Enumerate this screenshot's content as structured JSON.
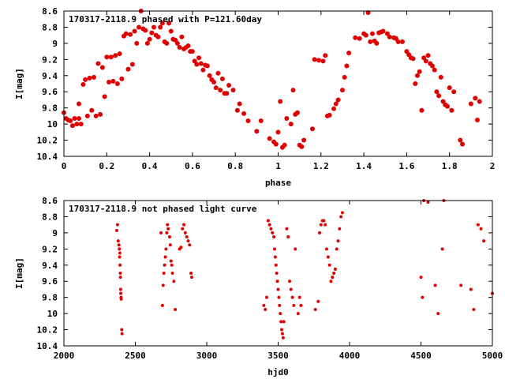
{
  "colors": {
    "points": "#e00000",
    "axes": "#000000",
    "background": "#ffffff"
  },
  "chart_data": [
    {
      "type": "scatter",
      "title": "170317-2118.9 phased with P=121.60day",
      "xlabel": "phase",
      "ylabel": "I[mag]",
      "xlim": [
        0,
        2
      ],
      "ylim": [
        8.6,
        10.4
      ],
      "y_inverted": true,
      "marker": "filled-circle-large",
      "grid": false,
      "xticks": [
        "0",
        "0.2",
        "0.4",
        "0.6",
        "0.8",
        "1",
        "1.2",
        "1.4",
        "1.6",
        "1.8",
        "2"
      ],
      "yticks": [
        "8.6",
        "8.8",
        "9",
        "9.2",
        "9.4",
        "9.6",
        "9.8",
        "10",
        "10.2",
        "10.4"
      ],
      "points": [
        [
          0.0,
          9.86
        ],
        [
          0.01,
          9.93
        ],
        [
          0.02,
          9.95
        ],
        [
          0.03,
          9.96
        ],
        [
          0.04,
          10.02
        ],
        [
          0.05,
          9.93
        ],
        [
          0.06,
          10.0
        ],
        [
          0.07,
          9.75
        ],
        [
          0.07,
          9.93
        ],
        [
          0.08,
          10.0
        ],
        [
          0.09,
          9.51
        ],
        [
          0.1,
          9.45
        ],
        [
          0.11,
          9.9
        ],
        [
          0.12,
          9.43
        ],
        [
          0.13,
          9.83
        ],
        [
          0.14,
          9.42
        ],
        [
          0.15,
          9.9
        ],
        [
          0.16,
          9.25
        ],
        [
          0.17,
          9.88
        ],
        [
          0.18,
          9.3
        ],
        [
          0.19,
          9.66
        ],
        [
          0.2,
          9.17
        ],
        [
          0.21,
          9.48
        ],
        [
          0.22,
          9.17
        ],
        [
          0.23,
          9.47
        ],
        [
          0.24,
          9.15
        ],
        [
          0.25,
          9.5
        ],
        [
          0.26,
          9.13
        ],
        [
          0.27,
          9.44
        ],
        [
          0.28,
          8.91
        ],
        [
          0.29,
          8.88
        ],
        [
          0.3,
          9.32
        ],
        [
          0.31,
          8.89
        ],
        [
          0.32,
          9.26
        ],
        [
          0.33,
          8.85
        ],
        [
          0.34,
          9.0
        ],
        [
          0.35,
          8.8
        ],
        [
          0.36,
          8.6
        ],
        [
          0.37,
          8.82
        ],
        [
          0.38,
          8.84
        ],
        [
          0.39,
          9.0
        ],
        [
          0.4,
          8.95
        ],
        [
          0.41,
          8.87
        ],
        [
          0.42,
          8.8
        ],
        [
          0.43,
          8.9
        ],
        [
          0.44,
          8.92
        ],
        [
          0.45,
          8.8
        ],
        [
          0.46,
          8.75
        ],
        [
          0.47,
          8.98
        ],
        [
          0.48,
          9.0
        ],
        [
          0.49,
          8.75
        ],
        [
          0.5,
          8.85
        ],
        [
          0.51,
          8.95
        ],
        [
          0.52,
          8.96
        ],
        [
          0.53,
          9.0
        ],
        [
          0.54,
          9.05
        ],
        [
          0.55,
          8.92
        ],
        [
          0.56,
          9.07
        ],
        [
          0.57,
          9.05
        ],
        [
          0.58,
          9.03
        ],
        [
          0.59,
          9.1
        ],
        [
          0.6,
          9.1
        ],
        [
          0.61,
          9.22
        ],
        [
          0.62,
          9.26
        ],
        [
          0.63,
          9.18
        ],
        [
          0.64,
          9.25
        ],
        [
          0.65,
          9.33
        ],
        [
          0.66,
          9.27
        ],
        [
          0.67,
          9.28
        ],
        [
          0.68,
          9.4
        ],
        [
          0.69,
          9.45
        ],
        [
          0.7,
          9.48
        ],
        [
          0.71,
          9.55
        ],
        [
          0.72,
          9.37
        ],
        [
          0.73,
          9.58
        ],
        [
          0.74,
          9.44
        ],
        [
          0.75,
          9.62
        ],
        [
          0.76,
          9.62
        ],
        [
          0.77,
          9.52
        ],
        [
          0.79,
          9.58
        ],
        [
          0.81,
          9.83
        ],
        [
          0.82,
          9.75
        ],
        [
          0.84,
          9.87
        ],
        [
          0.86,
          9.96
        ],
        [
          0.9,
          10.09
        ],
        [
          0.92,
          9.96
        ],
        [
          0.96,
          10.18
        ],
        [
          0.98,
          10.22
        ],
        [
          0.99,
          10.25
        ],
        [
          1.0,
          10.1
        ],
        [
          1.01,
          9.72
        ],
        [
          1.02,
          10.29
        ],
        [
          1.03,
          10.26
        ],
        [
          1.04,
          9.93
        ],
        [
          1.06,
          10.0
        ],
        [
          1.07,
          9.58
        ],
        [
          1.08,
          9.88
        ],
        [
          1.09,
          9.86
        ],
        [
          1.1,
          10.26
        ],
        [
          1.11,
          10.28
        ],
        [
          1.12,
          10.2
        ],
        [
          1.16,
          10.06
        ],
        [
          1.17,
          9.2
        ],
        [
          1.19,
          9.21
        ],
        [
          1.21,
          9.22
        ],
        [
          1.22,
          9.15
        ],
        [
          1.23,
          9.9
        ],
        [
          1.24,
          9.89
        ],
        [
          1.26,
          9.81
        ],
        [
          1.27,
          9.75
        ],
        [
          1.28,
          9.7
        ],
        [
          1.3,
          9.58
        ],
        [
          1.31,
          9.42
        ],
        [
          1.32,
          9.28
        ],
        [
          1.33,
          9.12
        ],
        [
          1.36,
          8.93
        ],
        [
          1.38,
          8.94
        ],
        [
          1.4,
          8.88
        ],
        [
          1.41,
          8.9
        ],
        [
          1.42,
          8.62
        ],
        [
          1.43,
          8.98
        ],
        [
          1.44,
          8.88
        ],
        [
          1.45,
          8.97
        ],
        [
          1.46,
          9.0
        ],
        [
          1.47,
          8.87
        ],
        [
          1.48,
          8.86
        ],
        [
          1.49,
          8.85
        ],
        [
          1.51,
          8.88
        ],
        [
          1.52,
          8.92
        ],
        [
          1.54,
          8.93
        ],
        [
          1.55,
          8.94
        ],
        [
          1.56,
          8.98
        ],
        [
          1.58,
          8.98
        ],
        [
          1.6,
          9.1
        ],
        [
          1.61,
          9.14
        ],
        [
          1.62,
          9.18
        ],
        [
          1.63,
          9.19
        ],
        [
          1.64,
          9.5
        ],
        [
          1.65,
          9.4
        ],
        [
          1.66,
          9.35
        ],
        [
          1.67,
          9.83
        ],
        [
          1.68,
          9.18
        ],
        [
          1.69,
          9.22
        ],
        [
          1.7,
          9.15
        ],
        [
          1.71,
          9.25
        ],
        [
          1.72,
          9.28
        ],
        [
          1.73,
          9.33
        ],
        [
          1.74,
          9.6
        ],
        [
          1.75,
          9.65
        ],
        [
          1.76,
          9.42
        ],
        [
          1.77,
          9.72
        ],
        [
          1.78,
          9.76
        ],
        [
          1.79,
          9.78
        ],
        [
          1.8,
          9.55
        ],
        [
          1.81,
          9.83
        ],
        [
          1.82,
          9.6
        ],
        [
          1.85,
          10.2
        ],
        [
          1.86,
          10.25
        ],
        [
          1.9,
          9.75
        ],
        [
          1.92,
          9.68
        ],
        [
          1.93,
          9.95
        ],
        [
          1.94,
          9.72
        ]
      ]
    },
    {
      "type": "scatter",
      "title": "170317-2118.9 not phased light curve",
      "xlabel": "hjd0",
      "ylabel": "I[mag]",
      "xlim": [
        2000,
        5000
      ],
      "ylim": [
        8.6,
        10.4
      ],
      "y_inverted": true,
      "marker": "filled-circle-small",
      "grid": false,
      "xticks": [
        "2000",
        "2500",
        "3000",
        "3500",
        "4000",
        "4500",
        "5000"
      ],
      "yticks": [
        "8.6",
        "8.8",
        "9",
        "9.2",
        "9.4",
        "9.6",
        "9.8",
        "10",
        "10.2",
        "10.4"
      ],
      "points": [
        [
          2370,
          8.97
        ],
        [
          2375,
          8.9
        ],
        [
          2380,
          9.1
        ],
        [
          2385,
          9.15
        ],
        [
          2388,
          9.2
        ],
        [
          2390,
          9.3
        ],
        [
          2392,
          9.25
        ],
        [
          2393,
          9.4
        ],
        [
          2395,
          9.5
        ],
        [
          2396,
          9.55
        ],
        [
          2397,
          9.7
        ],
        [
          2398,
          9.75
        ],
        [
          2400,
          9.8
        ],
        [
          2401,
          9.82
        ],
        [
          2405,
          10.2
        ],
        [
          2407,
          10.25
        ],
        [
          2680,
          9.0
        ],
        [
          2690,
          9.9
        ],
        [
          2695,
          9.65
        ],
        [
          2700,
          9.5
        ],
        [
          2705,
          9.4
        ],
        [
          2710,
          9.3
        ],
        [
          2715,
          9.2
        ],
        [
          2720,
          9.0
        ],
        [
          2725,
          8.9
        ],
        [
          2730,
          8.95
        ],
        [
          2740,
          9.05
        ],
        [
          2745,
          9.15
        ],
        [
          2750,
          9.35
        ],
        [
          2755,
          9.4
        ],
        [
          2760,
          9.5
        ],
        [
          2770,
          9.6
        ],
        [
          2780,
          9.95
        ],
        [
          2810,
          9.2
        ],
        [
          2820,
          9.18
        ],
        [
          2830,
          8.95
        ],
        [
          2840,
          8.9
        ],
        [
          2850,
          9.0
        ],
        [
          2860,
          9.05
        ],
        [
          2870,
          9.1
        ],
        [
          2880,
          9.15
        ],
        [
          2890,
          9.5
        ],
        [
          2895,
          9.55
        ],
        [
          3400,
          9.9
        ],
        [
          3410,
          9.95
        ],
        [
          3420,
          9.8
        ],
        [
          3430,
          8.85
        ],
        [
          3440,
          8.9
        ],
        [
          3450,
          8.95
        ],
        [
          3460,
          9.0
        ],
        [
          3470,
          9.05
        ],
        [
          3475,
          9.2
        ],
        [
          3480,
          9.3
        ],
        [
          3485,
          9.4
        ],
        [
          3490,
          9.5
        ],
        [
          3495,
          9.6
        ],
        [
          3500,
          9.7
        ],
        [
          3505,
          9.8
        ],
        [
          3510,
          9.9
        ],
        [
          3515,
          10.0
        ],
        [
          3520,
          10.1
        ],
        [
          3525,
          10.2
        ],
        [
          3530,
          10.25
        ],
        [
          3535,
          10.3
        ],
        [
          3540,
          10.1
        ],
        [
          3560,
          8.95
        ],
        [
          3570,
          9.05
        ],
        [
          3580,
          9.6
        ],
        [
          3590,
          9.7
        ],
        [
          3600,
          9.8
        ],
        [
          3610,
          9.9
        ],
        [
          3620,
          9.2
        ],
        [
          3640,
          10.0
        ],
        [
          3650,
          9.8
        ],
        [
          3660,
          9.9
        ],
        [
          3760,
          9.95
        ],
        [
          3780,
          9.85
        ],
        [
          3790,
          9.0
        ],
        [
          3800,
          8.9
        ],
        [
          3810,
          8.85
        ],
        [
          3820,
          8.85
        ],
        [
          3830,
          8.9
        ],
        [
          3840,
          9.2
        ],
        [
          3850,
          9.3
        ],
        [
          3860,
          9.4
        ],
        [
          3870,
          9.6
        ],
        [
          3880,
          9.55
        ],
        [
          3890,
          9.5
        ],
        [
          3900,
          9.45
        ],
        [
          3910,
          9.2
        ],
        [
          3920,
          9.1
        ],
        [
          3930,
          8.95
        ],
        [
          3940,
          8.8
        ],
        [
          3950,
          8.75
        ],
        [
          4500,
          9.55
        ],
        [
          4510,
          9.8
        ],
        [
          4520,
          8.6
        ],
        [
          4550,
          8.62
        ],
        [
          4600,
          9.65
        ],
        [
          4620,
          10.0
        ],
        [
          4650,
          9.2
        ],
        [
          4660,
          8.6
        ],
        [
          4780,
          9.65
        ],
        [
          4850,
          9.7
        ],
        [
          4870,
          9.95
        ],
        [
          4900,
          8.9
        ],
        [
          4920,
          8.95
        ],
        [
          4940,
          9.1
        ],
        [
          5000,
          9.75
        ]
      ]
    }
  ]
}
